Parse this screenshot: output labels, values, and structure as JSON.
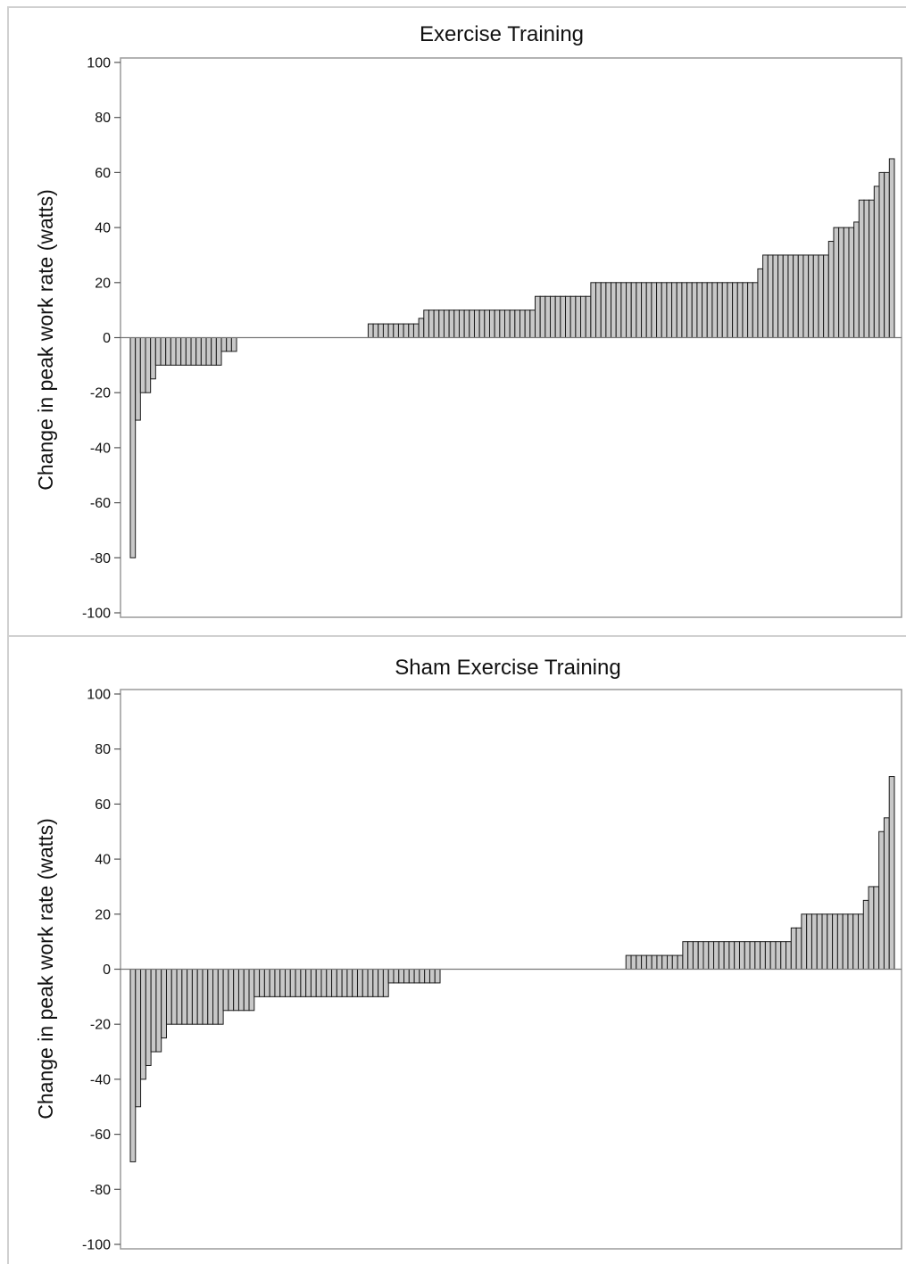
{
  "chart_data": [
    {
      "type": "bar",
      "title": "Exercise Training",
      "xlabel": "",
      "ylabel": "Change in peak work rate (watts)",
      "ylim": [
        -100,
        100
      ],
      "yticks": [
        100,
        80,
        60,
        40,
        20,
        0,
        -20,
        -40,
        -60,
        -80,
        -100
      ],
      "values": [
        -80,
        -30,
        -20,
        -20,
        -15,
        -10,
        -10,
        -10,
        -10,
        -10,
        -10,
        -10,
        -10,
        -10,
        -10,
        -10,
        -10,
        -10,
        -5,
        -5,
        -5,
        0,
        0,
        0,
        0,
        0,
        0,
        0,
        0,
        0,
        0,
        0,
        0,
        0,
        0,
        0,
        0,
        0,
        0,
        0,
        0,
        0,
        0,
        0,
        0,
        0,
        0,
        5,
        5,
        5,
        5,
        5,
        5,
        5,
        5,
        5,
        5,
        7,
        10,
        10,
        10,
        10,
        10,
        10,
        10,
        10,
        10,
        10,
        10,
        10,
        10,
        10,
        10,
        10,
        10,
        10,
        10,
        10,
        10,
        10,
        15,
        15,
        15,
        15,
        15,
        15,
        15,
        15,
        15,
        15,
        15,
        20,
        20,
        20,
        20,
        20,
        20,
        20,
        20,
        20,
        20,
        20,
        20,
        20,
        20,
        20,
        20,
        20,
        20,
        20,
        20,
        20,
        20,
        20,
        20,
        20,
        20,
        20,
        20,
        20,
        20,
        20,
        20,
        20,
        25,
        30,
        30,
        30,
        30,
        30,
        30,
        30,
        30,
        30,
        30,
        30,
        30,
        30,
        35,
        40,
        40,
        40,
        40,
        42,
        50,
        50,
        50,
        55,
        60,
        60,
        65
      ]
    },
    {
      "type": "bar",
      "title": "Sham Exercise Training",
      "xlabel": "",
      "ylabel": "Change in peak work rate (watts)",
      "ylim": [
        -100,
        100
      ],
      "yticks": [
        100,
        80,
        60,
        40,
        20,
        0,
        -20,
        -40,
        -60,
        -80,
        -100
      ],
      "values": [
        -70,
        -50,
        -40,
        -35,
        -30,
        -30,
        -25,
        -20,
        -20,
        -20,
        -20,
        -20,
        -20,
        -20,
        -20,
        -20,
        -20,
        -20,
        -15,
        -15,
        -15,
        -15,
        -15,
        -15,
        -10,
        -10,
        -10,
        -10,
        -10,
        -10,
        -10,
        -10,
        -10,
        -10,
        -10,
        -10,
        -10,
        -10,
        -10,
        -10,
        -10,
        -10,
        -10,
        -10,
        -10,
        -10,
        -10,
        -10,
        -10,
        -10,
        -5,
        -5,
        -5,
        -5,
        -5,
        -5,
        -5,
        -5,
        -5,
        -5,
        0,
        0,
        0,
        0,
        0,
        0,
        0,
        0,
        0,
        0,
        0,
        0,
        0,
        0,
        0,
        0,
        0,
        0,
        0,
        0,
        0,
        0,
        0,
        0,
        0,
        0,
        0,
        0,
        0,
        0,
        0,
        0,
        0,
        0,
        0,
        0,
        5,
        5,
        5,
        5,
        5,
        5,
        5,
        5,
        5,
        5,
        5,
        10,
        10,
        10,
        10,
        10,
        10,
        10,
        10,
        10,
        10,
        10,
        10,
        10,
        10,
        10,
        10,
        10,
        10,
        10,
        10,
        10,
        15,
        15,
        20,
        20,
        20,
        20,
        20,
        20,
        20,
        20,
        20,
        20,
        20,
        20,
        25,
        30,
        30,
        50,
        55,
        70
      ]
    }
  ],
  "colors": {
    "bar_fill": "#c8c8c8",
    "bar_stroke": "#1a1a1a",
    "frame": "#9a9a9a",
    "zero_line": "#777777"
  }
}
